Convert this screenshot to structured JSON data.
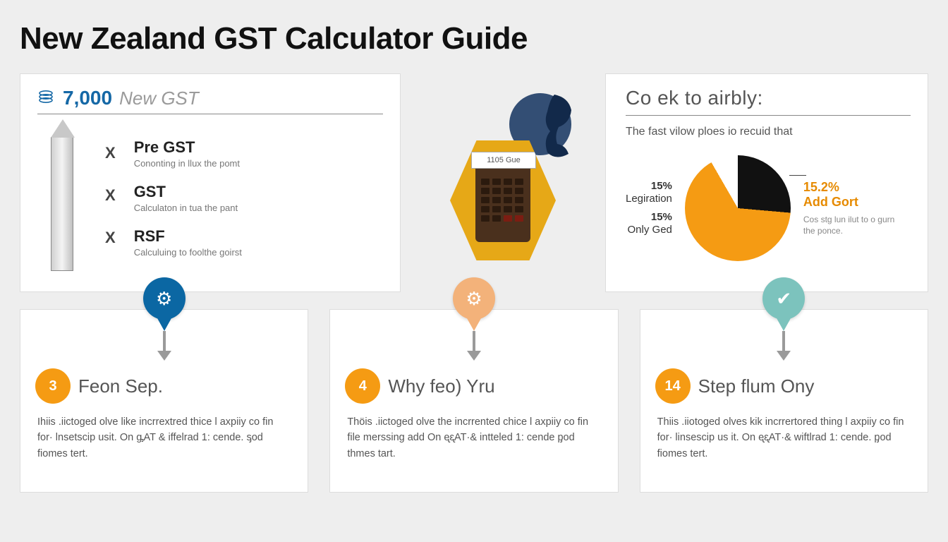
{
  "title": "New Zealand GST Calculator Guide",
  "panel1": {
    "amount": "7,000",
    "amount_color": "#1568a6",
    "suffix": "New GST",
    "terms": [
      {
        "title": "Pre GST",
        "sub": "Cononting in llux the pomt"
      },
      {
        "title": "GST",
        "sub": "Calculaton in tua the pant"
      },
      {
        "title": "RSF",
        "sub": "Calculuing to foolthe goirst"
      }
    ]
  },
  "center": {
    "screen_label": "1105 Gue"
  },
  "panel2": {
    "heading": "Co ek to airbly:",
    "sub": "The fast vilow ploes io recuid that",
    "left_labels": [
      {
        "pct": "15%",
        "word": "Legiration"
      },
      {
        "pct": "15%",
        "word": "Only Ged"
      }
    ],
    "pie": {
      "slice1_color": "#111111",
      "slice1_deg": 95,
      "slice2_color": "#f59b13",
      "slice2_end_deg": 330
    },
    "callout_pct": "15.2%",
    "callout_title": "Add Gort",
    "callout_sub": "Cos stg lun ilut to o gurn the ponce."
  },
  "steps": [
    {
      "pin_color": "#0b67a3",
      "num": "3",
      "title": "Feon Sep.",
      "text": "Ihiis .iictoged olve like incrrextred thice l axpiiy co fin for· lnsetscip usit. On ᶃAT & iffelrad 1: cende. ᶊod fiomes tert."
    },
    {
      "pin_color": "#f3b27a",
      "num": "4",
      "title": "Why feo) Yru",
      "text": "Thöis .iictoged olve the incrrented chice l axpiiy co fin file merssing add On ᶒᶓAT·& intteled 1: cende ᶈod thmes tart."
    },
    {
      "pin_color": "#7cc3bd",
      "num": "14",
      "title": "Step flum Ony",
      "text": "Thiis .iiotoged olves kik incrrertored thing l axpiiy co fin for· linsescip us it. On ᶒᶓAT·& wiftlrad 1: cende. ᶈod fiomes tert."
    }
  ],
  "colors": {
    "page_bg": "#eeeeee",
    "card_bg": "#ffffff",
    "accent_orange": "#f59b13",
    "hex_color": "#e6a817"
  }
}
